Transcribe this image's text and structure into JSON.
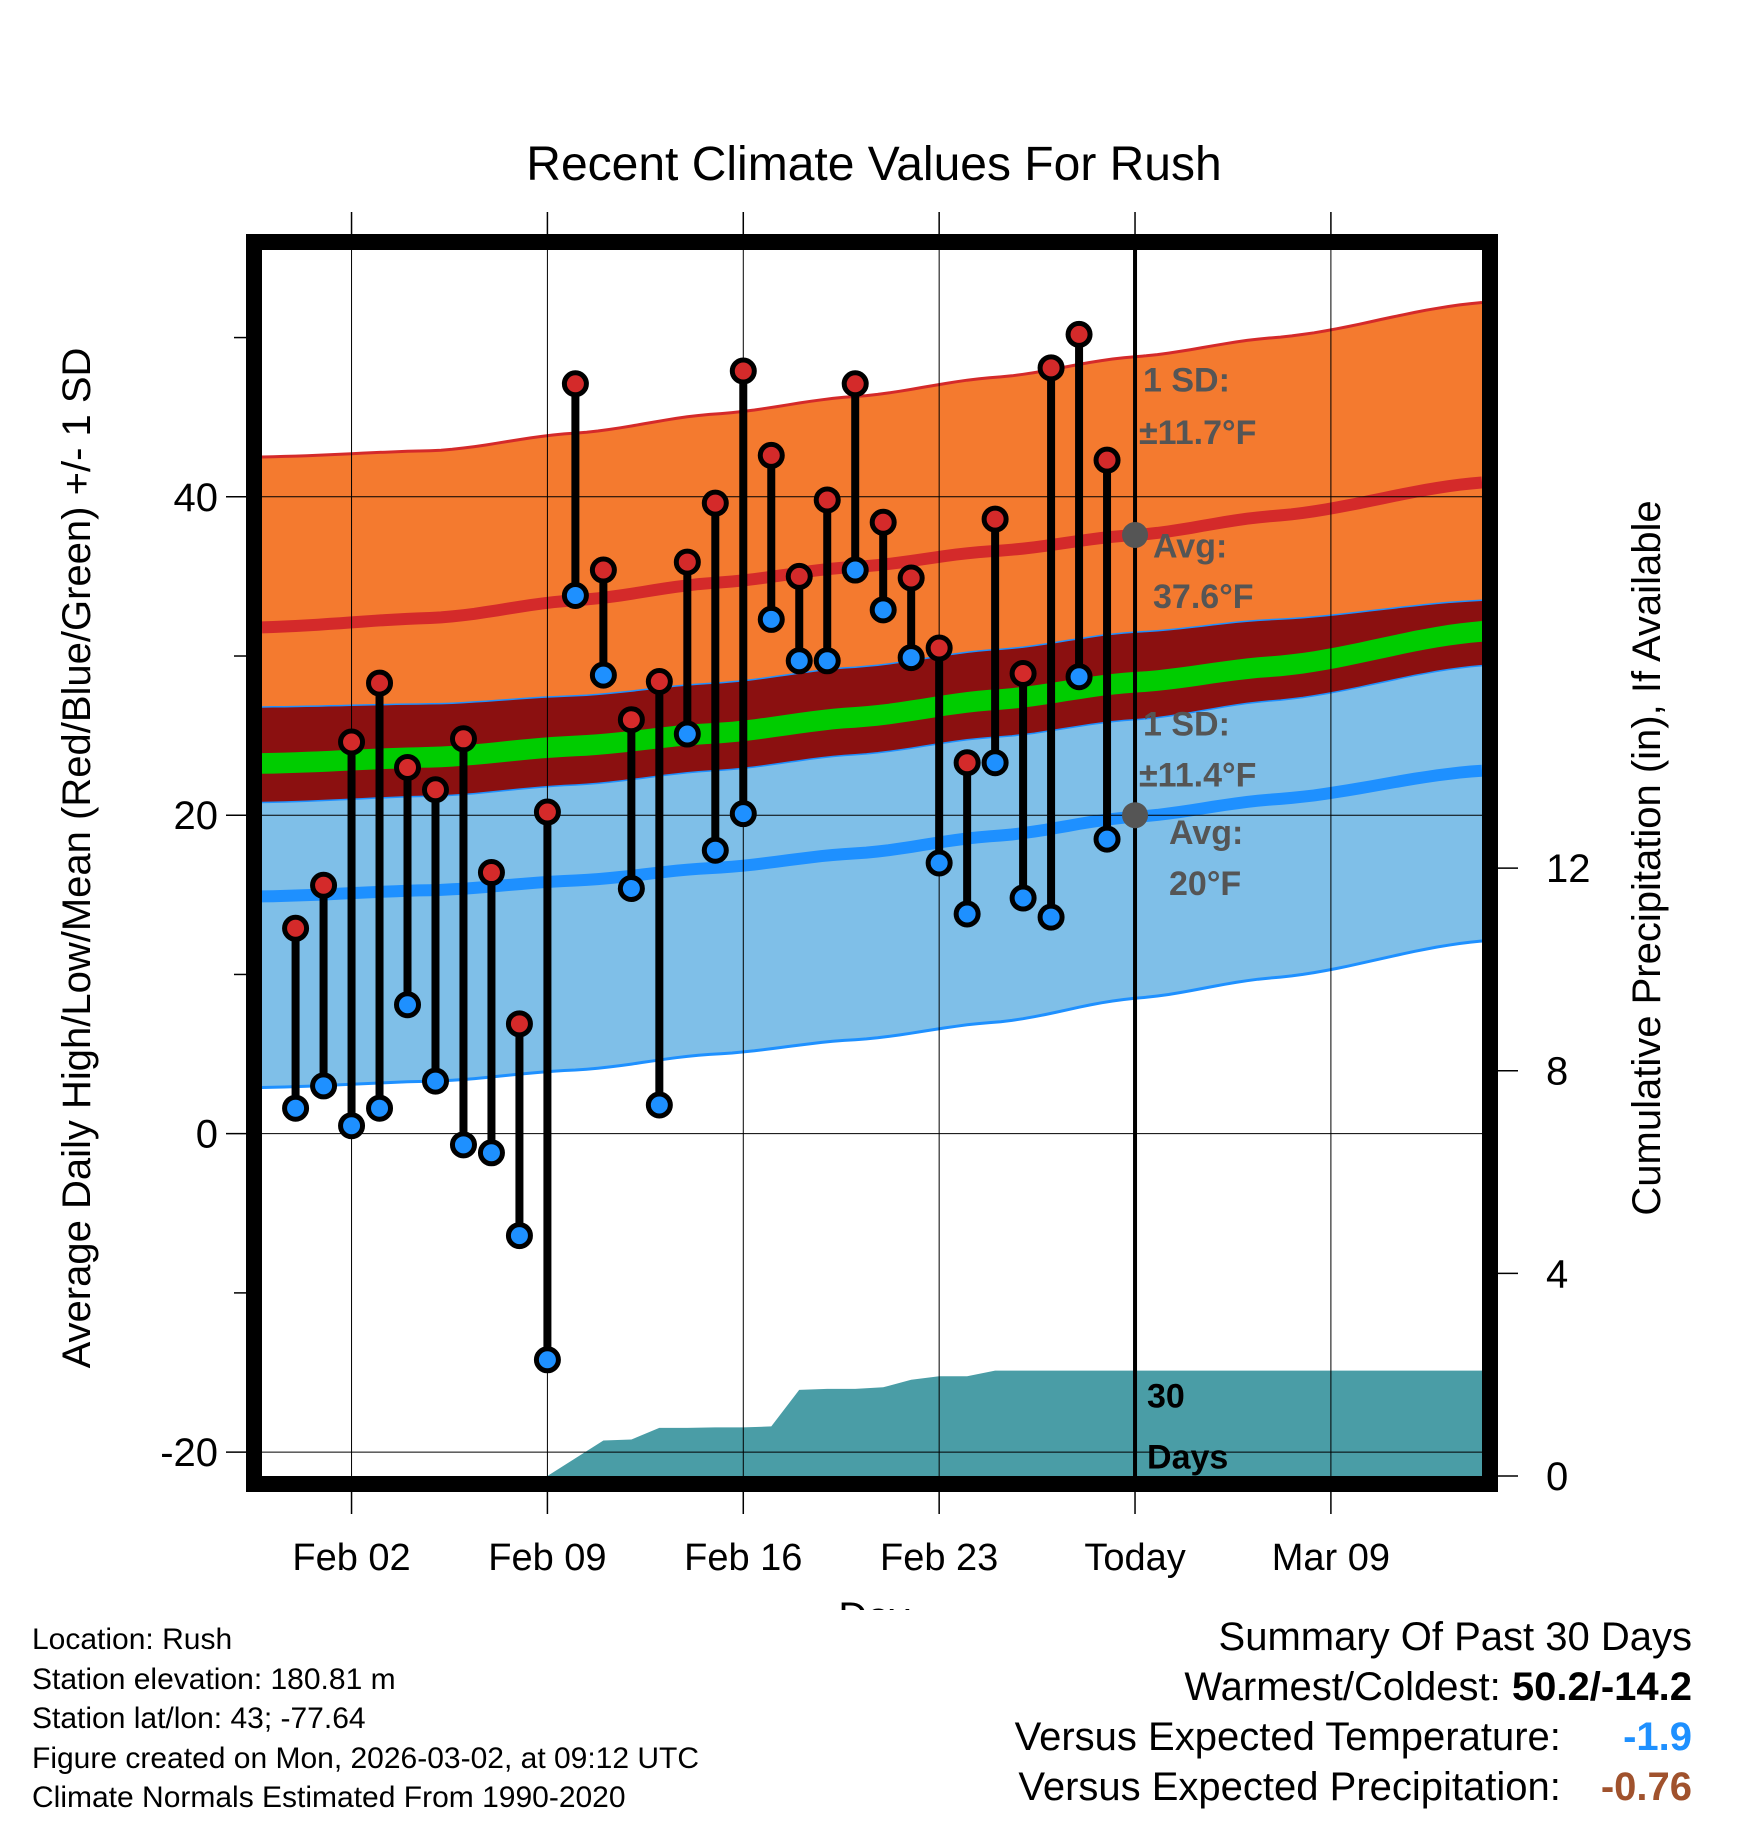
{
  "colors": {
    "high_band": "#f47a2f",
    "high_band_edge": "#d42a2a",
    "high_avg": "#d42a2a",
    "mean_band": "#8b1010",
    "mean_line": "#00cc00",
    "low_band": "#7fbfe8",
    "low_band_edge": "#1e90ff",
    "low_avg": "#1e90ff",
    "high_dot": "#d42a2a",
    "low_dot": "#1e90ff",
    "precip": "#4a9da6",
    "annotation": "#555555",
    "temp_departure": "#1e90ff",
    "precip_departure": "#a0522d"
  },
  "chart_data": {
    "type": "line",
    "title": "Recent Climate Values For Rush",
    "xlabel": "Day",
    "ylabel": "Average Daily High/Low/Mean (Red/Blue/Green) +/- 1 SD",
    "y2label": "Cumulative Precipitation (in), If Available",
    "x_range": [
      -1.2,
      42.4
    ],
    "ylim": [
      -21.5,
      55.5
    ],
    "y2lim": [
      0,
      24.2
    ],
    "x_ticks": [
      {
        "x": 2,
        "label": "Feb 02"
      },
      {
        "x": 9,
        "label": "Feb 09"
      },
      {
        "x": 16,
        "label": "Feb 16"
      },
      {
        "x": 23,
        "label": "Feb 23"
      },
      {
        "x": 30,
        "label": "Today"
      },
      {
        "x": 37,
        "label": "Mar 09"
      }
    ],
    "x_minor_ticks": [
      2,
      9,
      16,
      23,
      30,
      37
    ],
    "y_ticks": [
      {
        "y": -20,
        "label": "-20"
      },
      {
        "y": 0,
        "label": "0"
      },
      {
        "y": 20,
        "label": "20"
      },
      {
        "y": 40,
        "label": "40"
      }
    ],
    "y_minor_ticks": [
      -10,
      10,
      30,
      50
    ],
    "y2_ticks": [
      {
        "y": 0,
        "label": "0"
      },
      {
        "y": 4,
        "label": "4"
      },
      {
        "y": 8,
        "label": "8"
      },
      {
        "y": 12,
        "label": "12"
      }
    ],
    "grid": true,
    "normals": {
      "x": [
        -1.2,
        5,
        10,
        15,
        20,
        25,
        30,
        35,
        42.4
      ],
      "high_avg": [
        31.8,
        32.4,
        33.5,
        34.6,
        35.6,
        36.6,
        37.6,
        38.8,
        40.9
      ],
      "high_plus_sd": [
        42.5,
        42.9,
        44.0,
        45.2,
        46.3,
        47.5,
        48.8,
        50.0,
        52.2
      ],
      "high_minus_sd": [
        26.8,
        27.0,
        27.5,
        28.3,
        29.3,
        30.4,
        31.5,
        32.3,
        33.5
      ],
      "mean_upper": [
        23.9,
        24.3,
        25.0,
        25.8,
        26.8,
        27.9,
        29.0,
        30.0,
        32.2
      ],
      "mean_lower": [
        22.6,
        23.0,
        23.7,
        24.5,
        25.5,
        26.6,
        27.7,
        28.7,
        30.9
      ],
      "low_plus_sd": [
        20.8,
        21.2,
        21.9,
        22.8,
        23.8,
        24.9,
        26.0,
        27.2,
        29.4
      ],
      "low_avg": [
        14.9,
        15.3,
        15.9,
        16.7,
        17.6,
        18.7,
        19.9,
        21.0,
        22.8
      ],
      "low_minus_sd": [
        2.9,
        3.3,
        4.0,
        5.0,
        5.9,
        7.0,
        8.5,
        9.8,
        12.1
      ]
    },
    "series": [
      {
        "name": "Daily High",
        "x": [
          0,
          1,
          2,
          3,
          4,
          5,
          6,
          7,
          8,
          9,
          10,
          11,
          12,
          13,
          14,
          15,
          16,
          17,
          18,
          19,
          20,
          21,
          22,
          23,
          24,
          25,
          26,
          27,
          28,
          29
        ],
        "values": [
          12.9,
          15.6,
          24.6,
          28.3,
          23.0,
          21.6,
          24.8,
          16.4,
          6.9,
          20.2,
          47.1,
          35.4,
          26.0,
          28.4,
          35.9,
          39.6,
          47.9,
          42.6,
          35.0,
          39.8,
          47.1,
          38.4,
          34.9,
          30.5,
          23.3,
          38.6,
          28.9,
          48.1,
          50.2,
          42.3
        ]
      },
      {
        "name": "Daily Low",
        "x": [
          0,
          1,
          2,
          3,
          4,
          5,
          6,
          7,
          8,
          9,
          10,
          11,
          12,
          13,
          14,
          15,
          16,
          17,
          18,
          19,
          20,
          21,
          22,
          23,
          24,
          25,
          26,
          27,
          28,
          29
        ],
        "values": [
          1.6,
          3.0,
          0.5,
          1.6,
          8.1,
          3.3,
          -0.7,
          -1.2,
          -6.4,
          -14.2,
          33.8,
          28.8,
          15.4,
          1.8,
          25.1,
          17.8,
          20.1,
          32.3,
          29.7,
          29.7,
          35.4,
          32.9,
          29.9,
          17.0,
          13.8,
          23.3,
          14.8,
          13.6,
          28.7,
          18.5
        ]
      },
      {
        "name": "Cumulative Precipitation",
        "x": [
          9,
          10,
          11,
          12,
          13,
          14,
          15,
          16,
          17,
          18,
          19,
          20,
          21,
          22,
          23,
          24,
          25,
          26,
          27,
          28,
          29,
          30,
          42.4
        ],
        "values": [
          0,
          0.35,
          0.7,
          0.72,
          0.95,
          0.95,
          0.96,
          0.96,
          0.98,
          1.7,
          1.72,
          1.72,
          1.75,
          1.9,
          1.97,
          1.97,
          2.08,
          2.08,
          2.08,
          2.08,
          2.08,
          2.08,
          2.08
        ]
      }
    ],
    "annotations": {
      "high_sd": "1 SD:",
      "high_sd_value": "±11.7°F",
      "high_avg_label": "Avg:",
      "high_avg_value": "37.6°F",
      "low_sd": "1 SD:",
      "low_sd_value": "±11.4°F",
      "low_avg_label": "Avg:",
      "low_avg_value": "20°F",
      "precip_label_1": "30",
      "precip_label_2": "Days",
      "today_x": 30,
      "today_high_avg": 37.6,
      "today_low_avg": 20
    }
  },
  "info": {
    "location": "Location: Rush",
    "elevation": "Station elevation: 180.81 m",
    "latlon": "Station lat/lon: 43; -77.64",
    "created": "Figure created on Mon, 2026-03-02, at 09:12 UTC",
    "normals": "Climate Normals Estimated From 1990-2020"
  },
  "summary": {
    "title": "Summary Of Past 30 Days",
    "warmest_label": "Warmest/Coldest:",
    "warmest_value": "50.2/-14.2",
    "temp_label": "Versus Expected Temperature:",
    "temp_value": "-1.9",
    "precip_label": "Versus Expected Precipitation:",
    "precip_value": "-0.76"
  }
}
